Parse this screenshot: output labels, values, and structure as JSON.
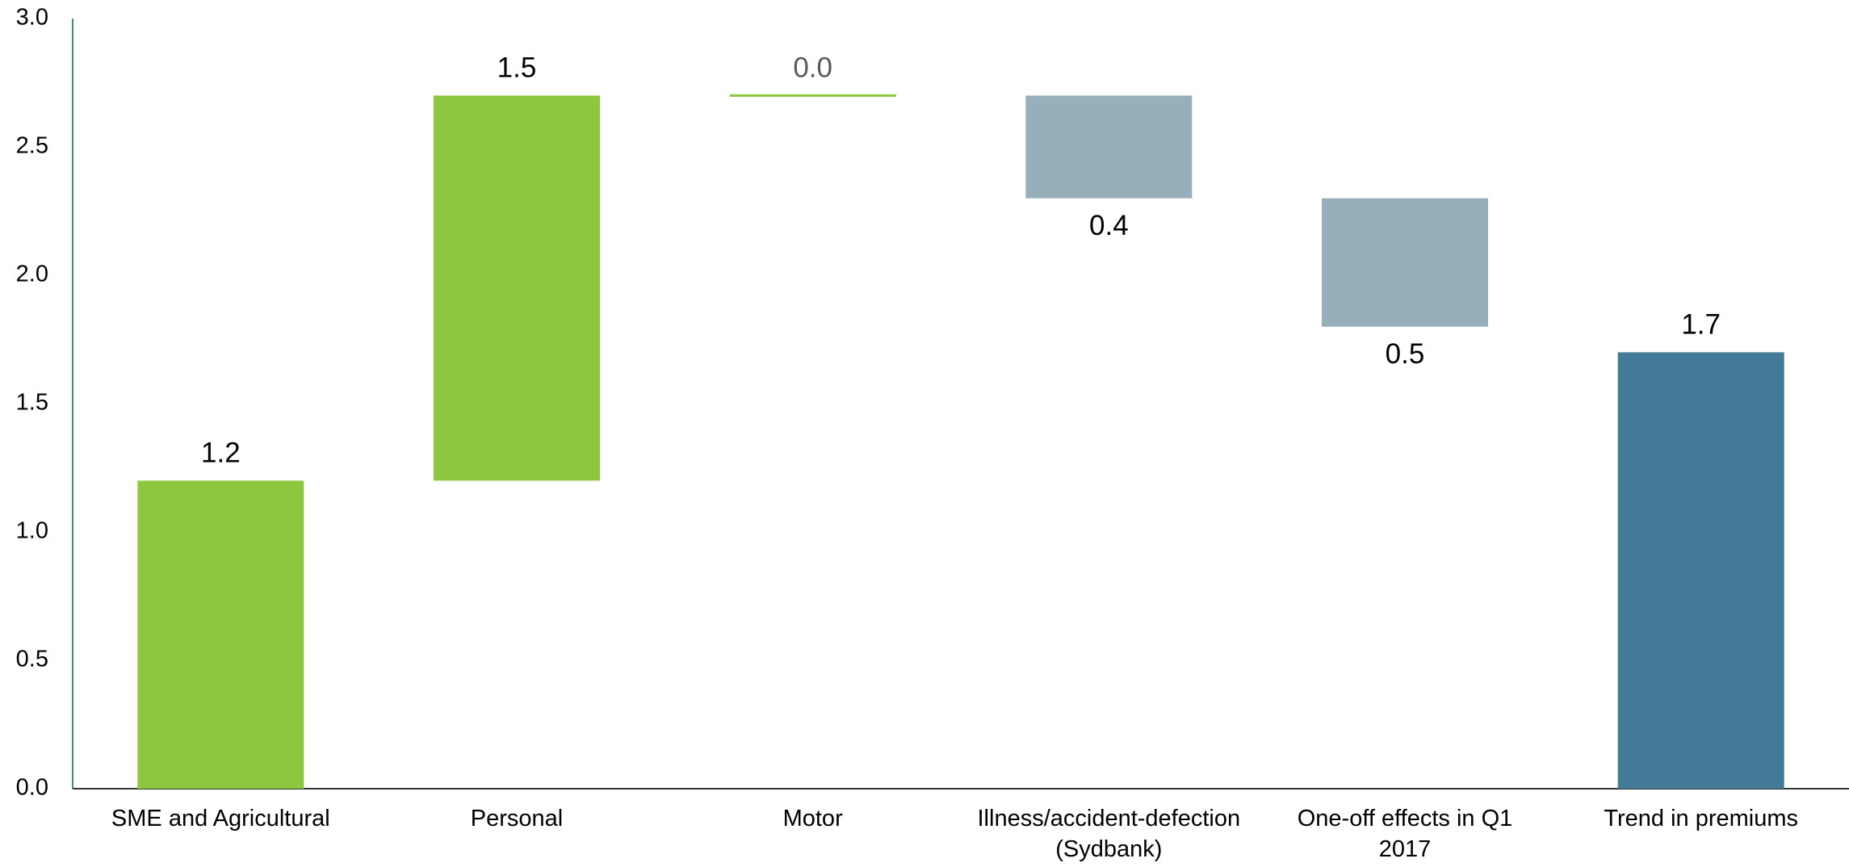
{
  "chart_data": {
    "type": "waterfall",
    "categories": [
      "SME and Agricultural",
      "Personal",
      "Motor",
      "Illness/accident-defection (Sydbank)",
      "One-off effects in Q1 2017",
      "Trend in premiums"
    ],
    "values": [
      1.2,
      1.5,
      0.0,
      -0.4,
      -0.5,
      1.7
    ],
    "value_labels": [
      "1.2",
      "1.5",
      "0.0",
      "0.4",
      "0.5",
      "1.7"
    ],
    "measure": [
      "relative",
      "relative",
      "relative",
      "relative",
      "relative",
      "total"
    ],
    "colors": {
      "increase": "#8dc63f",
      "decrease": "#97aebb",
      "total": "#437a97"
    },
    "ylim": [
      0,
      3.0
    ],
    "yticks": [
      {
        "value": 0,
        "label": "0.0"
      },
      0.5,
      {
        "value": 1,
        "label": "1.0"
      },
      1.5,
      {
        "value": 2,
        "label": "2.0"
      },
      2.5,
      {
        "value": 3,
        "label": "3.0"
      }
    ],
    "grid": false
  }
}
